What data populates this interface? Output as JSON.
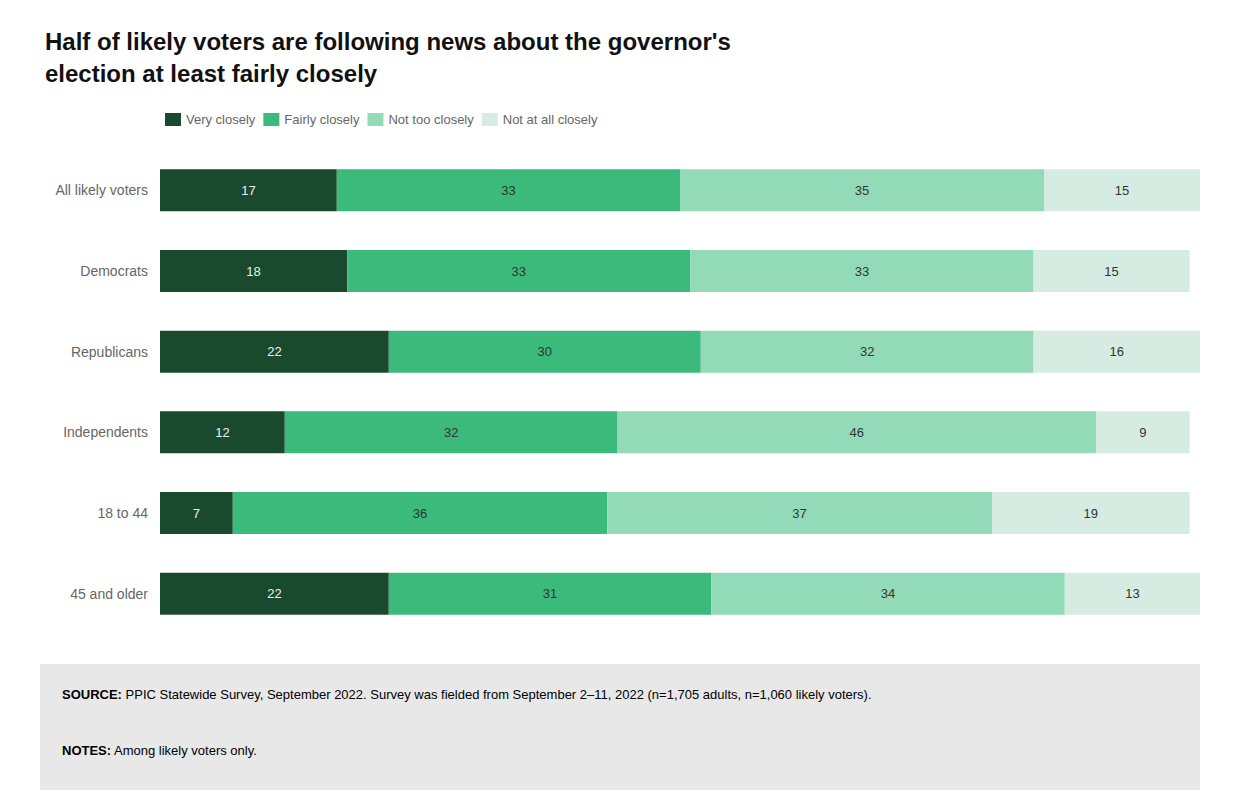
{
  "chart_data": {
    "type": "bar",
    "orientation": "horizontal",
    "stacked": true,
    "title": "Half of likely voters are following news about the governor's\nelection at least fairly closely",
    "categories": [
      "All likely voters",
      "Democrats",
      "Republicans",
      "Independents",
      "18 to 44",
      "45 and older"
    ],
    "series": [
      {
        "name": "Very closely",
        "color": "#1a4a2e",
        "values": [
          17,
          18,
          22,
          12,
          7,
          22
        ]
      },
      {
        "name": "Fairly closely",
        "color": "#3bba7c",
        "values": [
          33,
          33,
          30,
          32,
          36,
          31
        ]
      },
      {
        "name": "Not too closely",
        "color": "#93dbb8",
        "values": [
          35,
          33,
          32,
          46,
          37,
          34
        ]
      },
      {
        "name": "Not at all closely",
        "color": "#d6ece3",
        "values": [
          15,
          15,
          16,
          9,
          19,
          13
        ]
      }
    ],
    "xlim": [
      0,
      100
    ],
    "tick_labels": "y",
    "grid": false,
    "legend": "top left",
    "data_labels": true,
    "annotations": [
      "SOURCE: PPIC Statewide Survey, September 2022. Survey was fielded from September 2–11, 2022 (n=1,705 adults, n=1,060 likely voters).",
      "NOTES: Among likely voters only."
    ]
  }
}
